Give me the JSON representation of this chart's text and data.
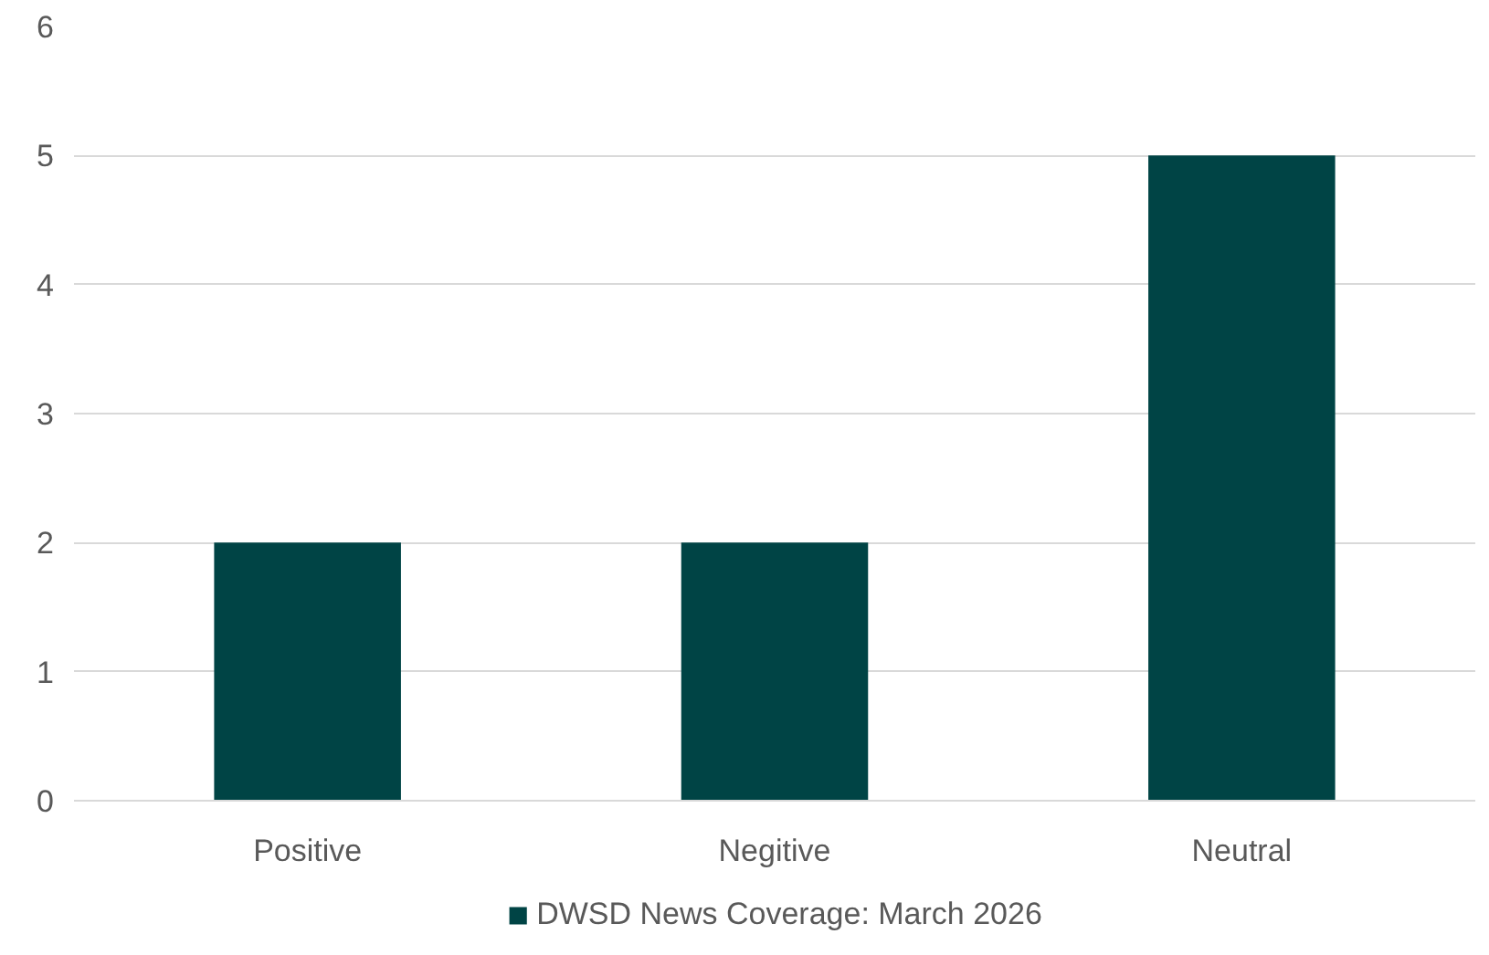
{
  "chart_data": {
    "type": "bar",
    "categories": [
      "Positive",
      "Negitive",
      "Neutral"
    ],
    "series": [
      {
        "name": "DWSD News Coverage: March 2026",
        "color": "#004445",
        "values": [
          2,
          2,
          5
        ]
      }
    ],
    "ylim": [
      0,
      6
    ],
    "yticks": [
      0,
      1,
      2,
      3,
      4,
      5,
      6
    ],
    "grid": "y",
    "legend": "bottom"
  }
}
